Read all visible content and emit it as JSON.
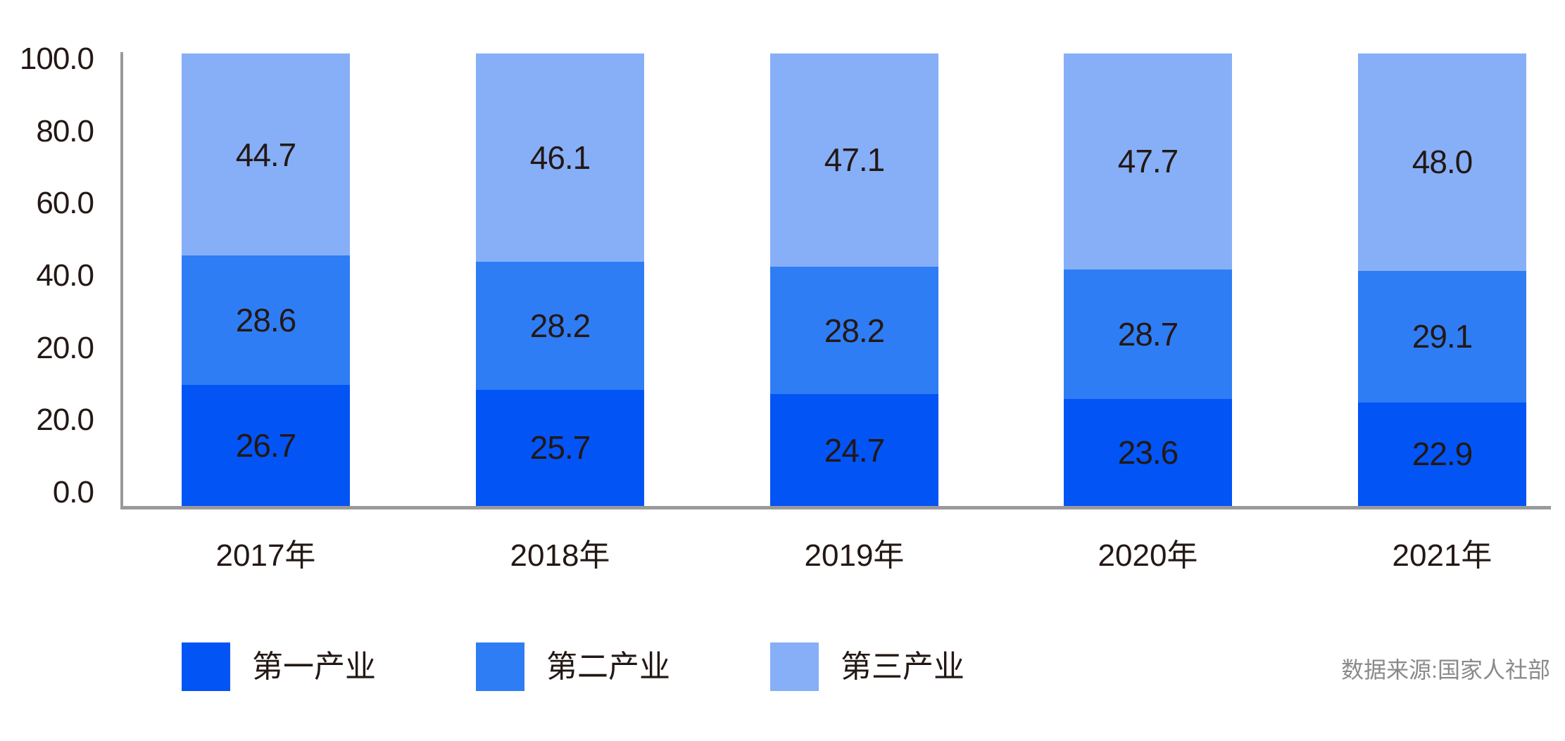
{
  "chart_data": {
    "type": "bar",
    "stacked": true,
    "percent_stacked": true,
    "categories": [
      "2017年",
      "2018年",
      "2019年",
      "2020年",
      "2021年"
    ],
    "series": [
      {
        "name": "第一产业",
        "color": "#0254F5",
        "values": [
          26.7,
          25.7,
          24.7,
          23.6,
          22.9
        ]
      },
      {
        "name": "第二产业",
        "color": "#2F7DF5",
        "values": [
          28.6,
          28.2,
          28.2,
          28.7,
          29.1
        ]
      },
      {
        "name": "第三产业",
        "color": "#86AFF7",
        "values": [
          44.7,
          46.1,
          47.1,
          47.7,
          48.0
        ]
      }
    ],
    "y_axis": {
      "tick_labels_top_to_bottom": [
        "100.0",
        "80.0",
        "60.0",
        "40.0",
        "20.0",
        "20.0",
        "0.0"
      ],
      "range": [
        0,
        100
      ]
    },
    "legend": {
      "position": "bottom",
      "entries": [
        "第一产业",
        "第二产业",
        "第三产业"
      ]
    },
    "source_note": "数据来源:国家人社部",
    "grid": false,
    "value_label_decimals": 1
  },
  "style_colors": {
    "axis_gray": "#9a9a9a",
    "text_dark": "#231815",
    "source_gray": "#8a8a8a",
    "background": "#ffffff"
  }
}
